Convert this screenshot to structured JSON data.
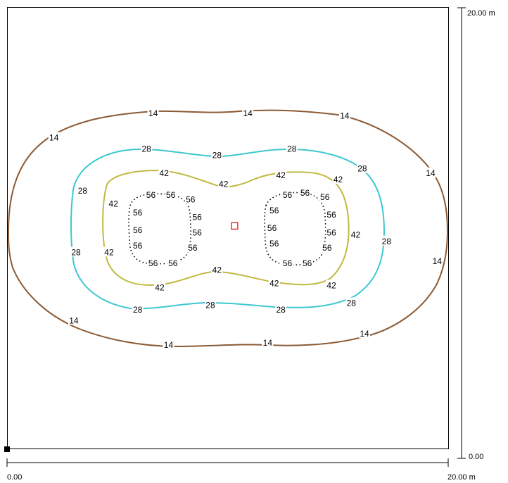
{
  "chart_data": {
    "type": "contour",
    "x_axis": {
      "min_label": "0.00",
      "max_label": "20.00 m",
      "range": [
        0,
        20
      ]
    },
    "y_axis": {
      "min_label": "0.00",
      "max_label": "20.00 m",
      "range": [
        0,
        20
      ]
    },
    "levels": [
      {
        "value": "14",
        "color": "#8B5A34"
      },
      {
        "value": "28",
        "color": "#3CC8D0"
      },
      {
        "value": "42",
        "color": "#C0BA40"
      },
      {
        "value": "56",
        "color": "#000000"
      }
    ],
    "contour_labels": {
      "14": [
        [
          2.1,
          14.1
        ],
        [
          6.6,
          15.2
        ],
        [
          10.9,
          15.2
        ],
        [
          15.3,
          15.1
        ],
        [
          19.2,
          12.5
        ],
        [
          19.5,
          8.5
        ],
        [
          16.2,
          5.2
        ],
        [
          11.8,
          4.8
        ],
        [
          7.3,
          4.7
        ],
        [
          3.0,
          5.8
        ]
      ],
      "28": [
        [
          6.3,
          13.6
        ],
        [
          9.5,
          13.3
        ],
        [
          12.9,
          13.6
        ],
        [
          16.1,
          12.7
        ],
        [
          17.2,
          9.4
        ],
        [
          15.6,
          6.6
        ],
        [
          12.4,
          6.3
        ],
        [
          9.2,
          6.5
        ],
        [
          5.9,
          6.3
        ],
        [
          3.1,
          8.9
        ],
        [
          3.4,
          11.7
        ]
      ],
      "42": [
        [
          7.1,
          12.5
        ],
        [
          9.8,
          12.0
        ],
        [
          12.4,
          12.4
        ],
        [
          15.0,
          12.2
        ],
        [
          15.8,
          9.7
        ],
        [
          14.7,
          7.4
        ],
        [
          12.1,
          7.5
        ],
        [
          9.5,
          8.1
        ],
        [
          6.9,
          7.3
        ],
        [
          4.6,
          8.9
        ],
        [
          4.8,
          11.1
        ]
      ],
      "56": [
        [
          6.5,
          11.5
        ],
        [
          7.4,
          11.5
        ],
        [
          8.3,
          11.3
        ],
        [
          8.6,
          10.5
        ],
        [
          8.6,
          9.8
        ],
        [
          8.4,
          9.1
        ],
        [
          7.5,
          8.4
        ],
        [
          6.6,
          8.4
        ],
        [
          5.9,
          9.2
        ],
        [
          5.9,
          9.9
        ],
        [
          5.9,
          10.7
        ],
        [
          12.7,
          11.5
        ],
        [
          13.5,
          11.6
        ],
        [
          14.4,
          11.4
        ],
        [
          14.7,
          10.6
        ],
        [
          14.7,
          9.8
        ],
        [
          14.5,
          9.1
        ],
        [
          13.6,
          8.4
        ],
        [
          12.7,
          8.4
        ],
        [
          12.1,
          9.3
        ],
        [
          12.0,
          10.0
        ],
        [
          12.1,
          10.8
        ]
      ]
    },
    "marker": {
      "x": 10.3,
      "y": 10.1,
      "color": "#E00000"
    }
  }
}
